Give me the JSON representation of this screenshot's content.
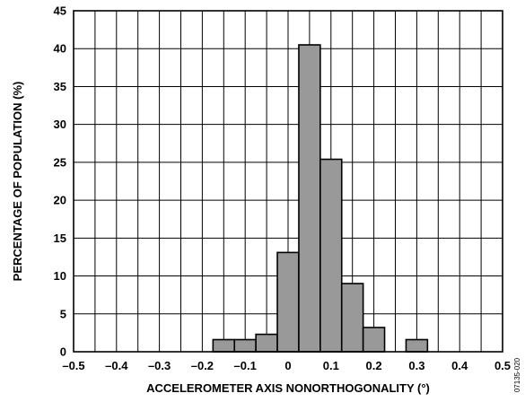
{
  "chart_data": {
    "type": "bar",
    "xlabel": "ACCELEROMETER AXIS NONORTHOGONALITY (°)",
    "ylabel": "PERCENTAGE OF POPULATION (%)",
    "xlim": [
      -0.5,
      0.5
    ],
    "ylim": [
      0,
      45
    ],
    "grid": true,
    "bin_width": 0.05,
    "x_ticks": [
      "–0.5",
      "–0.4",
      "–0.3",
      "–0.2",
      "–0.1",
      "0",
      "0.1",
      "0.2",
      "0.3",
      "0.4",
      "0.5"
    ],
    "x_tick_values": [
      -0.5,
      -0.4,
      -0.3,
      -0.2,
      -0.1,
      0,
      0.1,
      0.2,
      0.3,
      0.4,
      0.5
    ],
    "y_ticks": [
      "0",
      "5",
      "10",
      "15",
      "20",
      "25",
      "30",
      "35",
      "40",
      "45"
    ],
    "y_tick_values": [
      0,
      5,
      10,
      15,
      20,
      25,
      30,
      35,
      40,
      45
    ],
    "bins": [
      {
        "x": -0.15,
        "value": 1.6
      },
      {
        "x": -0.1,
        "value": 1.6
      },
      {
        "x": -0.05,
        "value": 2.3
      },
      {
        "x": 0.0,
        "value": 13.1
      },
      {
        "x": 0.05,
        "value": 40.5
      },
      {
        "x": 0.1,
        "value": 25.4
      },
      {
        "x": 0.15,
        "value": 9.0
      },
      {
        "x": 0.2,
        "value": 3.2
      },
      {
        "x": 0.3,
        "value": 1.6
      }
    ],
    "bar_color": "#999999",
    "edge_color": "#000000"
  },
  "figure_code": "07135-020"
}
